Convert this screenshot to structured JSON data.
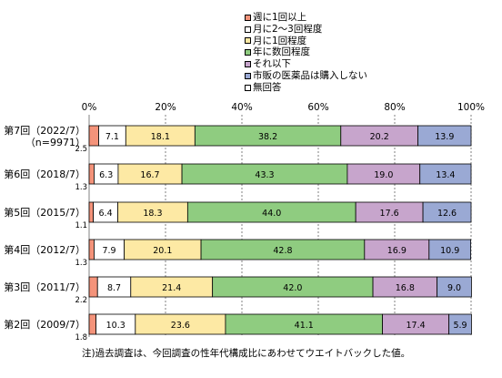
{
  "chart_data": {
    "type": "bar",
    "stacked": true,
    "orientation": "horizontal",
    "xlim": [
      0,
      100
    ],
    "x_ticks": [
      "0%",
      "20%",
      "40%",
      "60%",
      "80%",
      "100%"
    ],
    "grid": true,
    "legend_position": "top-right",
    "categories": [
      {
        "label": "第7回（2022/7）",
        "sublabel": "（n=9971）"
      },
      {
        "label": "第6回（2018/7）",
        "sublabel": ""
      },
      {
        "label": "第5回（2015/7）",
        "sublabel": ""
      },
      {
        "label": "第4回（2012/7）",
        "sublabel": ""
      },
      {
        "label": "第3回（2011/7）",
        "sublabel": ""
      },
      {
        "label": "第2回（2009/7）",
        "sublabel": ""
      }
    ],
    "series": [
      {
        "name": "週に1回以上",
        "color": "#f4937a",
        "values": [
          2.5,
          1.3,
          1.1,
          1.3,
          2.2,
          1.8
        ],
        "labels": [
          "2.5",
          "1.3",
          "1.1",
          "1.3",
          "2.2",
          "1.8"
        ]
      },
      {
        "name": "月に2～3回程度",
        "color": "#ffffff",
        "values": [
          7.1,
          6.3,
          6.4,
          7.9,
          8.7,
          10.3
        ],
        "labels": [
          "7.1",
          "6.3",
          "6.4",
          "7.9",
          "8.7",
          "10.3"
        ]
      },
      {
        "name": "月に1回程度",
        "color": "#fde9a4",
        "values": [
          18.1,
          16.7,
          18.3,
          20.1,
          21.4,
          23.6
        ],
        "labels": [
          "18.1",
          "16.7",
          "18.3",
          "20.1",
          "21.4",
          "23.6"
        ]
      },
      {
        "name": "年に数回程度",
        "color": "#8fcc80",
        "values": [
          38.2,
          43.3,
          44.0,
          42.8,
          42.0,
          41.1
        ],
        "labels": [
          "38.2",
          "43.3",
          "44.0",
          "42.8",
          "42.0",
          "41.1"
        ]
      },
      {
        "name": "それ以下",
        "color": "#c7a5cc",
        "values": [
          20.2,
          19.0,
          17.6,
          16.9,
          16.8,
          17.4
        ],
        "labels": [
          "20.2",
          "19.0",
          "17.6",
          "16.9",
          "16.8",
          "17.4"
        ]
      },
      {
        "name": "市販の医薬品は購入しない",
        "color": "#9aa9d4",
        "values": [
          13.9,
          13.4,
          12.6,
          10.9,
          9.0,
          5.9
        ],
        "labels": [
          "13.9",
          "13.4",
          "12.6",
          "10.9",
          "9.0",
          "5.9"
        ]
      },
      {
        "name": "無回答",
        "color": "#ffffff",
        "values": [
          0,
          0,
          0,
          0,
          0,
          0
        ],
        "labels": [
          "",
          "",
          "",
          "",
          "",
          ""
        ]
      }
    ],
    "note": "注)過去調査は、今回調査の性年代構成比にあわせてウエイトバックした値。"
  }
}
